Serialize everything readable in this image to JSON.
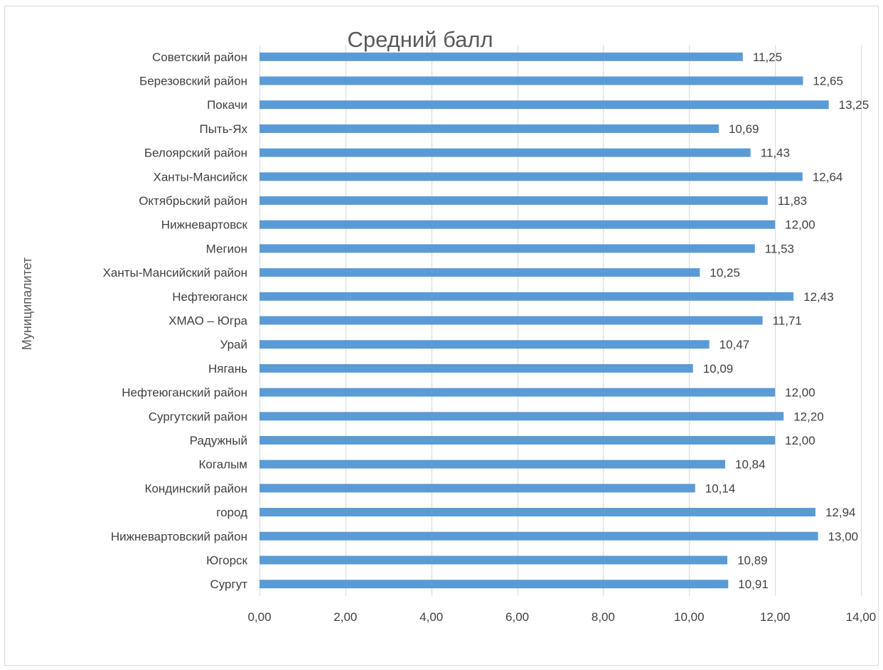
{
  "chart_data": {
    "type": "bar",
    "orientation": "horizontal",
    "title": "Средний балл",
    "ylabel": "Муниципалитет",
    "xlabel": "",
    "categories": [
      "Советский район",
      "Березовский район",
      "Покачи",
      "Пыть-Ях",
      "Белоярский район",
      "Ханты-Мансийск",
      "Октябрьский район",
      "Нижневартовск",
      "Мегион",
      "Ханты-Мансийский район",
      "Нефтеюганск",
      "ХМАО – Югра",
      "Урай",
      "Нягань",
      "Нефтеюганский район",
      "Сургутский район",
      "Радужный",
      "Когалым",
      "Кондинский район",
      "город",
      "Нижневартовский район",
      "Югорск",
      "Сургут"
    ],
    "values": [
      11.25,
      12.65,
      13.25,
      10.69,
      11.43,
      12.64,
      11.83,
      12.0,
      11.53,
      10.25,
      12.43,
      11.71,
      10.47,
      10.09,
      12.0,
      12.2,
      12.0,
      10.84,
      10.14,
      12.94,
      13.0,
      10.89,
      10.91
    ],
    "data_labels": [
      "11,25",
      "12,65",
      "13,25",
      "10,69",
      "11,43",
      "12,64",
      "11,83",
      "12,00",
      "11,53",
      "10,25",
      "12,43",
      "11,71",
      "10,47",
      "10,09",
      "12,00",
      "12,20",
      "12,00",
      "10,84",
      "10,14",
      "12,94",
      "13,00",
      "10,89",
      "10,91"
    ],
    "xlim": [
      0,
      14
    ],
    "xticks": [
      0,
      2,
      4,
      6,
      8,
      10,
      12,
      14
    ],
    "xtick_labels": [
      "0,00",
      "2,00",
      "4,00",
      "6,00",
      "8,00",
      "10,00",
      "12,00",
      "14,00"
    ],
    "grid": true,
    "legend": "none",
    "bar_color": "#5b9bd5"
  }
}
